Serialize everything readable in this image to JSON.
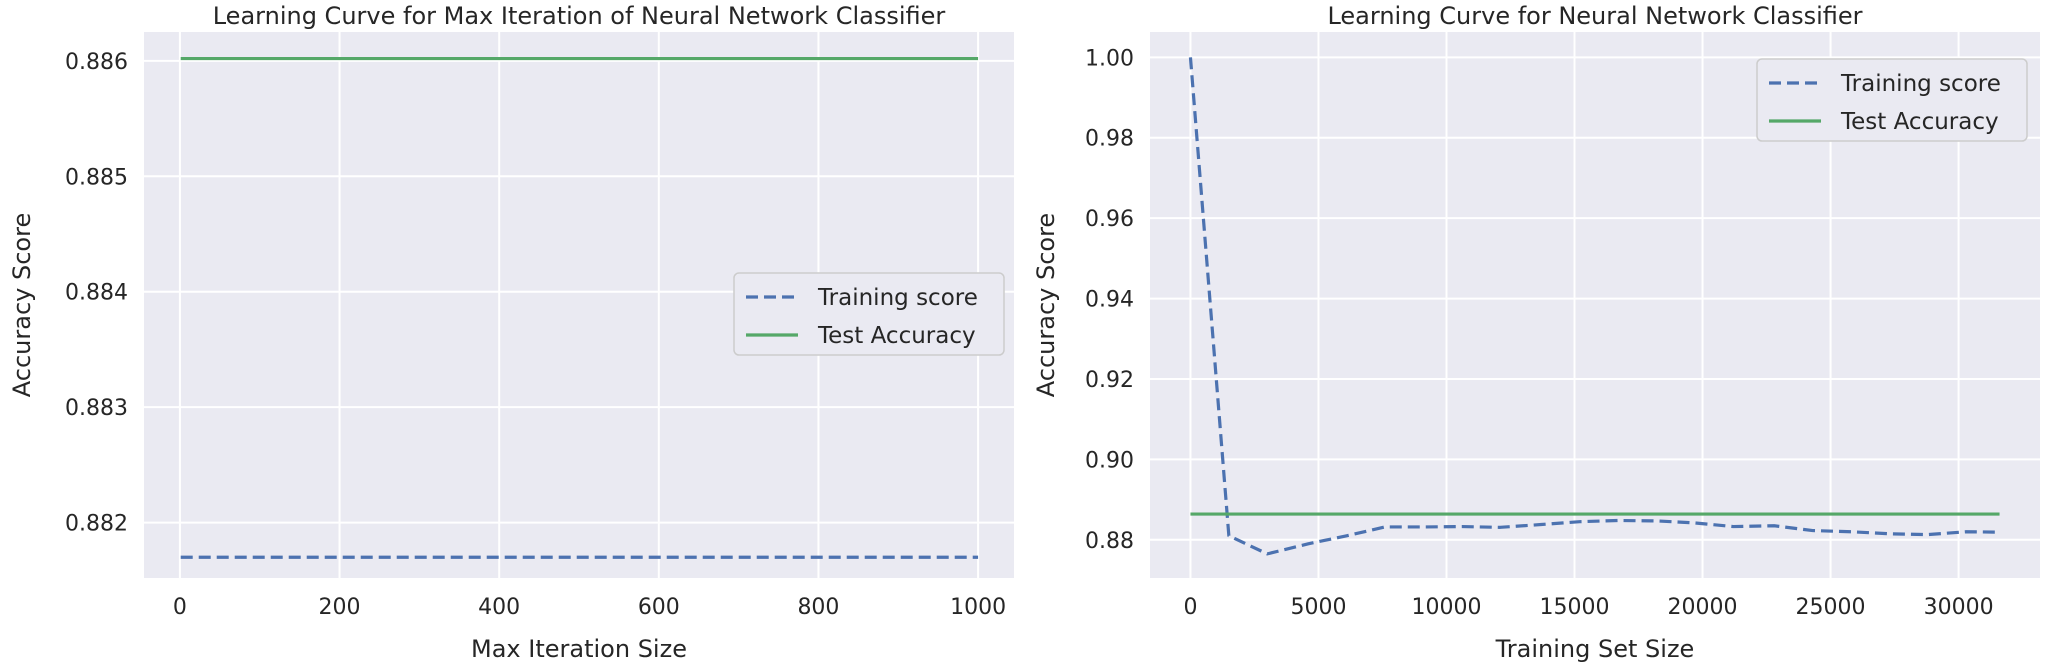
{
  "chart_data": [
    {
      "type": "line",
      "title": "Learning Curve for Max Iteration of Neural Network Classifier",
      "xlabel": "Max Iteration Size",
      "ylabel": "Accuracy Score",
      "xlim": [
        -45,
        1045
      ],
      "ylim": [
        0.88152,
        0.88625
      ],
      "xticks": [
        0,
        200,
        400,
        600,
        800,
        1000
      ],
      "xtick_labels": [
        "0",
        "200",
        "400",
        "600",
        "800",
        "1000"
      ],
      "yticks": [
        0.882,
        0.883,
        0.884,
        0.885,
        0.886
      ],
      "ytick_labels": [
        "0.882",
        "0.883",
        "0.884",
        "0.885",
        "0.886"
      ],
      "grid": true,
      "legend_position": "center-right",
      "series": [
        {
          "name": "Training score",
          "style": "dashed",
          "color": "#4c72b0",
          "x": [
            1,
            1000
          ],
          "y": [
            0.8817,
            0.8817
          ]
        },
        {
          "name": "Test Accuracy",
          "style": "solid",
          "color": "#55a868",
          "x": [
            1,
            1000
          ],
          "y": [
            0.88602,
            0.88602
          ]
        }
      ]
    },
    {
      "type": "line",
      "title": "Learning Curve for Neural Network Classifier",
      "xlabel": "Training Set Size",
      "ylabel": "Accuracy Score",
      "xlim": [
        -1580,
        33180
      ],
      "ylim": [
        0.8705,
        1.0063
      ],
      "xticks": [
        0,
        5000,
        10000,
        15000,
        20000,
        25000,
        30000
      ],
      "xtick_labels": [
        "0",
        "5000",
        "10000",
        "15000",
        "20000",
        "25000",
        "30000"
      ],
      "yticks": [
        0.88,
        0.9,
        0.92,
        0.94,
        0.96,
        0.98,
        1.0
      ],
      "ytick_labels": [
        "0.88",
        "0.90",
        "0.92",
        "0.94",
        "0.96",
        "0.98",
        "1.00"
      ],
      "grid": true,
      "legend_position": "top-right",
      "series": [
        {
          "name": "Training score",
          "style": "dashed",
          "color": "#4c72b0",
          "x": [
            0,
            1500,
            3000,
            4600,
            6100,
            7600,
            9100,
            10600,
            12100,
            13700,
            15200,
            16700,
            18200,
            19700,
            21200,
            22800,
            24300,
            25800,
            27300,
            28800,
            30300,
            31600
          ],
          "y": [
            1.0,
            0.881,
            0.8765,
            0.879,
            0.881,
            0.8832,
            0.8832,
            0.8833,
            0.8831,
            0.8838,
            0.8845,
            0.8848,
            0.8847,
            0.8842,
            0.8833,
            0.8835,
            0.8823,
            0.882,
            0.8815,
            0.8813,
            0.882,
            0.8819
          ]
        },
        {
          "name": "Test Accuracy",
          "style": "solid",
          "color": "#55a868",
          "x": [
            0,
            31600
          ],
          "y": [
            0.8864,
            0.8864
          ]
        }
      ]
    }
  ]
}
